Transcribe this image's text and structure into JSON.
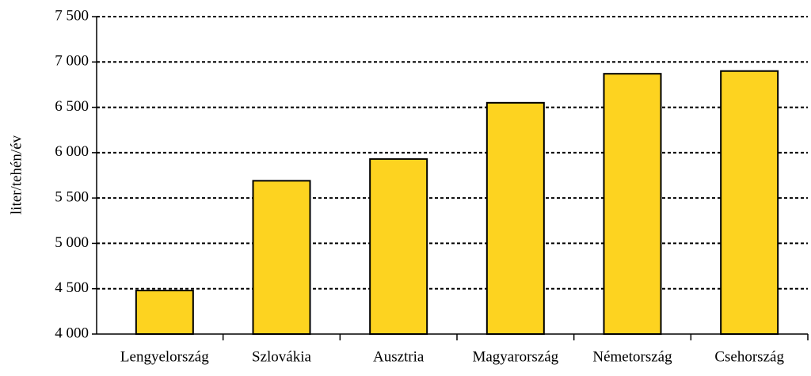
{
  "chart_data": {
    "type": "bar",
    "y_label": "liter/tehén/év",
    "categories": [
      "Lengyelország",
      "Szlovákia",
      "Ausztria",
      "Magyarország",
      "Németország",
      "Csehország"
    ],
    "values": [
      4480,
      5690,
      5930,
      6550,
      6870,
      6900
    ],
    "color": "#fdd320",
    "ylim": [
      4000,
      7500
    ],
    "yticks": [
      {
        "value": 4000,
        "label": "4 000"
      },
      {
        "value": 4500,
        "label": "4 500"
      },
      {
        "value": 5000,
        "label": "5 000"
      },
      {
        "value": 5500,
        "label": "5 500"
      },
      {
        "value": 6000,
        "label": "6 000"
      },
      {
        "value": 6500,
        "label": "6 500"
      },
      {
        "value": 7000,
        "label": "7 000"
      },
      {
        "value": 7500,
        "label": "7 500"
      }
    ],
    "grid": true
  }
}
